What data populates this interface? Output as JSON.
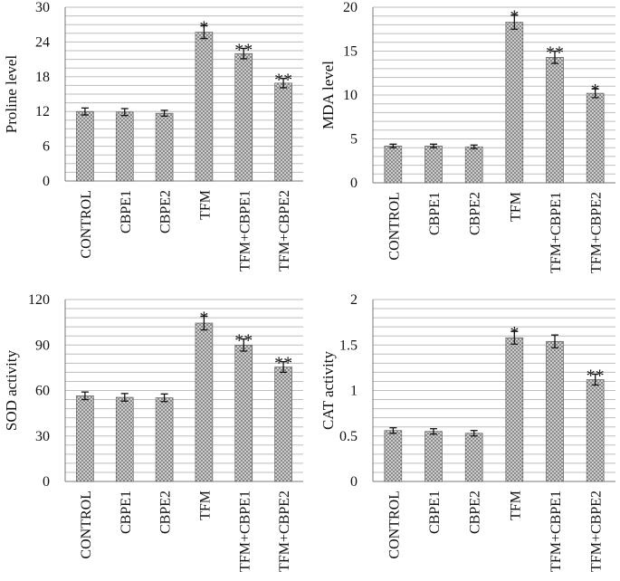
{
  "chart_data": [
    {
      "type": "bar",
      "ylabel": "Proline level",
      "ylim": [
        0,
        30
      ],
      "yticks": [
        0,
        6,
        12,
        18,
        24,
        30
      ],
      "grid_step": 1.5,
      "categories": [
        "CONTROL",
        "CBPE1",
        "CBPE2",
        "TFM",
        "TFM+CBPE1",
        "TFM+CBPE2"
      ],
      "values": [
        12.0,
        11.9,
        11.7,
        25.7,
        22.0,
        16.9
      ],
      "errors": [
        0.6,
        0.6,
        0.5,
        1.1,
        0.9,
        0.8
      ],
      "significance": [
        "",
        "",
        "",
        "*",
        "**",
        "**"
      ]
    },
    {
      "type": "bar",
      "ylabel": "MDA  level",
      "ylim": [
        0,
        20
      ],
      "yticks": [
        0,
        5,
        10,
        15,
        20
      ],
      "grid_step": 1,
      "categories": [
        "CONTROL",
        "CBPE1",
        "CBPE2",
        "TFM",
        "TFM+CBPE1",
        "TFM+CBPE2"
      ],
      "values": [
        4.2,
        4.2,
        4.1,
        18.3,
        14.3,
        10.2
      ],
      "errors": [
        0.2,
        0.2,
        0.2,
        0.8,
        0.7,
        0.5
      ],
      "significance": [
        "",
        "",
        "",
        "*",
        "**",
        "*"
      ]
    },
    {
      "type": "bar",
      "ylabel": "SOD activity",
      "ylim": [
        0,
        120
      ],
      "yticks": [
        0,
        30,
        60,
        90,
        120
      ],
      "grid_step": 6,
      "categories": [
        "CONTROL",
        "CBPE1",
        "CBPE2",
        "TFM",
        "TFM+CBPE1",
        "TFM+CBPE2"
      ],
      "values": [
        56.5,
        55.5,
        55.2,
        104.5,
        90.0,
        75.5
      ],
      "errors": [
        2.5,
        2.5,
        2.5,
        4.5,
        4.0,
        3.5
      ],
      "significance": [
        "",
        "",
        "",
        "*",
        "**",
        "**"
      ]
    },
    {
      "type": "bar",
      "ylabel": "CAT activity",
      "ylim": [
        0,
        2
      ],
      "yticks": [
        "0",
        "0.5",
        "1",
        "1.5",
        "2"
      ],
      "grid_step": 0.1,
      "categories": [
        "CONTROL",
        "CBPE1",
        "CBPE2",
        "TFM",
        "TFM+CBPE1",
        "TFM+CBPE2"
      ],
      "values": [
        0.56,
        0.55,
        0.53,
        1.58,
        1.54,
        1.12
      ],
      "errors": [
        0.03,
        0.03,
        0.03,
        0.07,
        0.07,
        0.06
      ],
      "significance": [
        "",
        "",
        "",
        "*",
        "",
        "**"
      ]
    }
  ]
}
